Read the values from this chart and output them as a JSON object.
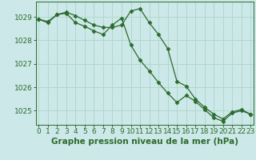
{
  "line1": {
    "x": [
      0,
      1,
      2,
      3,
      4,
      5,
      6,
      7,
      8,
      9,
      10,
      11,
      12,
      13,
      14,
      15,
      16,
      17,
      18,
      19,
      20,
      21,
      22,
      23
    ],
    "y": [
      1028.9,
      1028.8,
      1029.1,
      1029.2,
      1029.05,
      1028.85,
      1028.65,
      1028.55,
      1028.55,
      1028.65,
      1029.25,
      1029.35,
      1028.75,
      1028.25,
      1027.65,
      1026.25,
      1026.05,
      1025.5,
      1025.15,
      1024.85,
      1024.65,
      1024.95,
      1025.05,
      1024.85
    ]
  },
  "line2": {
    "x": [
      0,
      1,
      2,
      3,
      4,
      5,
      6,
      7,
      8,
      9,
      10,
      11,
      12,
      13,
      14,
      15,
      16,
      17,
      18,
      19,
      20,
      21,
      22,
      23
    ],
    "y": [
      1028.9,
      1028.75,
      1029.1,
      1029.15,
      1028.75,
      1028.6,
      1028.4,
      1028.25,
      1028.65,
      1028.95,
      1027.8,
      1027.15,
      1026.7,
      1026.2,
      1025.75,
      1025.35,
      1025.65,
      1025.4,
      1025.05,
      1024.7,
      1024.55,
      1024.9,
      1025.0,
      1024.85
    ]
  },
  "line_color": "#2d6a2d",
  "marker": "D",
  "marker_size": 2.5,
  "bg_color": "#cce8e8",
  "grid_color": "#b0d8cc",
  "ylabel_ticks": [
    1025,
    1026,
    1027,
    1028,
    1029
  ],
  "xlabel_ticks": [
    0,
    1,
    2,
    3,
    4,
    5,
    6,
    7,
    8,
    9,
    10,
    11,
    12,
    13,
    14,
    15,
    16,
    17,
    18,
    19,
    20,
    21,
    22,
    23
  ],
  "ylim": [
    1024.4,
    1029.65
  ],
  "xlim": [
    -0.3,
    23.3
  ],
  "xlabel": "Graphe pression niveau de la mer (hPa)",
  "xlabel_fontsize": 7.5,
  "tick_fontsize": 6.5
}
